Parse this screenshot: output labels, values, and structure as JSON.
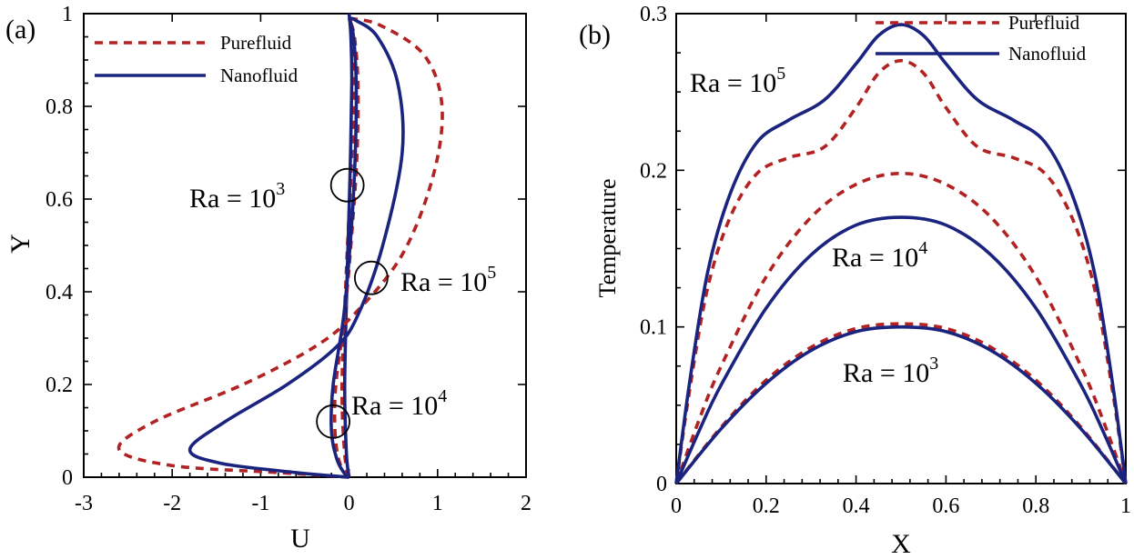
{
  "chart_data": [
    {
      "type": "line",
      "panel_label": "(a)",
      "xlabel": "U",
      "ylabel": "Y",
      "xlim": [
        -3,
        2
      ],
      "ylim": [
        0,
        1
      ],
      "x_ticks": [
        "-3",
        "-2",
        "-1",
        "0",
        "1",
        "2"
      ],
      "y_ticks": [
        "0",
        "0.2",
        "0.4",
        "0.6",
        "0.8",
        "1"
      ],
      "legend": {
        "position": "top-left",
        "entries": [
          "Purefluid",
          "Nanofluid"
        ]
      },
      "annotations": [
        {
          "base": "Ra = 10",
          "exp": "3",
          "marker_at": [
            -0.02,
            0.63
          ]
        },
        {
          "base": "Ra = 10",
          "exp": "5",
          "marker_at": [
            0.25,
            0.43
          ]
        },
        {
          "base": "Ra = 10",
          "exp": "4",
          "marker_at": [
            -0.18,
            0.12
          ]
        }
      ],
      "series": [
        {
          "name": "Purefluid",
          "group": "Ra=10^3",
          "points": [
            [
              0,
              0
            ],
            [
              -0.05,
              0.05
            ],
            [
              -0.08,
              0.2
            ],
            [
              -0.03,
              0.45
            ],
            [
              0.02,
              0.65
            ],
            [
              0.06,
              0.85
            ],
            [
              0.04,
              0.95
            ],
            [
              0,
              1
            ]
          ]
        },
        {
          "name": "Nanofluid",
          "group": "Ra=10^3",
          "points": [
            [
              0,
              0
            ],
            [
              -0.03,
              0.05
            ],
            [
              -0.05,
              0.2
            ],
            [
              -0.02,
              0.45
            ],
            [
              0.01,
              0.65
            ],
            [
              0.03,
              0.85
            ],
            [
              0.02,
              0.95
            ],
            [
              0,
              1
            ]
          ]
        },
        {
          "name": "Purefluid",
          "group": "Ra=10^4",
          "points": [
            [
              0,
              0
            ],
            [
              -0.05,
              0.01
            ],
            [
              -0.12,
              0.04
            ],
            [
              -0.16,
              0.1
            ],
            [
              -0.15,
              0.2
            ],
            [
              -0.05,
              0.35
            ],
            [
              0.04,
              0.55
            ],
            [
              0.09,
              0.7
            ],
            [
              0.1,
              0.85
            ],
            [
              0.06,
              0.95
            ],
            [
              0,
              0.99
            ]
          ]
        },
        {
          "name": "Nanofluid",
          "group": "Ra=10^4",
          "points": [
            [
              0,
              0
            ],
            [
              -0.06,
              0.01
            ],
            [
              -0.14,
              0.04
            ],
            [
              -0.2,
              0.1
            ],
            [
              -0.18,
              0.2
            ],
            [
              -0.06,
              0.35
            ],
            [
              0.03,
              0.55
            ],
            [
              0.07,
              0.7
            ],
            [
              0.08,
              0.85
            ],
            [
              0.05,
              0.95
            ],
            [
              0,
              0.99
            ]
          ]
        },
        {
          "name": "Purefluid",
          "group": "Ra=10^5",
          "points": [
            [
              0,
              0
            ],
            [
              -0.8,
              0.01
            ],
            [
              -2.0,
              0.025
            ],
            [
              -2.6,
              0.06
            ],
            [
              -2.2,
              0.12
            ],
            [
              -1.2,
              0.2
            ],
            [
              -0.4,
              0.28
            ],
            [
              0.05,
              0.35
            ],
            [
              0.6,
              0.48
            ],
            [
              0.95,
              0.65
            ],
            [
              1.05,
              0.8
            ],
            [
              0.85,
              0.91
            ],
            [
              0.35,
              0.975
            ],
            [
              0,
              0.99
            ]
          ]
        },
        {
          "name": "Nanofluid",
          "group": "Ra=10^5",
          "points": [
            [
              0,
              0
            ],
            [
              -0.6,
              0.01
            ],
            [
              -1.45,
              0.03
            ],
            [
              -1.8,
              0.06
            ],
            [
              -1.4,
              0.12
            ],
            [
              -0.7,
              0.2
            ],
            [
              -0.15,
              0.28
            ],
            [
              0.1,
              0.35
            ],
            [
              0.38,
              0.5
            ],
            [
              0.6,
              0.7
            ],
            [
              0.55,
              0.85
            ],
            [
              0.32,
              0.95
            ],
            [
              0.08,
              0.985
            ],
            [
              0,
              0.99
            ]
          ]
        }
      ]
    },
    {
      "type": "line",
      "panel_label": "(b)",
      "xlabel": "X",
      "ylabel": "Temperature",
      "xlim": [
        0,
        1
      ],
      "ylim": [
        0,
        0.3
      ],
      "x_ticks": [
        "0",
        "0.2",
        "0.4",
        "0.6",
        "0.8",
        "1"
      ],
      "y_ticks": [
        "0",
        "0.1",
        "0.2",
        "0.3"
      ],
      "legend": {
        "position": "top-right",
        "entries": [
          "Purefluid",
          "Nanofluid"
        ]
      },
      "annotations": [
        {
          "base": "Ra = 10",
          "exp": "5"
        },
        {
          "base": "Ra = 10",
          "exp": "4"
        },
        {
          "base": "Ra = 10",
          "exp": "3"
        }
      ],
      "series": [
        {
          "name": "Purefluid",
          "group": "Ra=10^3",
          "points": [
            [
              0,
              0
            ],
            [
              0.1,
              0.036
            ],
            [
              0.2,
              0.066
            ],
            [
              0.3,
              0.087
            ],
            [
              0.4,
              0.099
            ],
            [
              0.5,
              0.102
            ],
            [
              0.6,
              0.099
            ],
            [
              0.7,
              0.087
            ],
            [
              0.8,
              0.066
            ],
            [
              0.9,
              0.036
            ],
            [
              1,
              0
            ]
          ]
        },
        {
          "name": "Nanofluid",
          "group": "Ra=10^3",
          "points": [
            [
              0,
              0
            ],
            [
              0.1,
              0.035
            ],
            [
              0.2,
              0.064
            ],
            [
              0.3,
              0.085
            ],
            [
              0.4,
              0.097
            ],
            [
              0.5,
              0.1
            ],
            [
              0.6,
              0.097
            ],
            [
              0.7,
              0.085
            ],
            [
              0.8,
              0.064
            ],
            [
              0.9,
              0.035
            ],
            [
              1,
              0
            ]
          ]
        },
        {
          "name": "Purefluid",
          "group": "Ra=10^4",
          "points": [
            [
              0,
              0
            ],
            [
              0.05,
              0.04
            ],
            [
              0.1,
              0.075
            ],
            [
              0.2,
              0.132
            ],
            [
              0.3,
              0.17
            ],
            [
              0.4,
              0.191
            ],
            [
              0.5,
              0.198
            ],
            [
              0.6,
              0.191
            ],
            [
              0.7,
              0.17
            ],
            [
              0.8,
              0.132
            ],
            [
              0.9,
              0.075
            ],
            [
              0.95,
              0.04
            ],
            [
              1,
              0
            ]
          ]
        },
        {
          "name": "Nanofluid",
          "group": "Ra=10^4",
          "points": [
            [
              0,
              0
            ],
            [
              0.05,
              0.033
            ],
            [
              0.1,
              0.063
            ],
            [
              0.2,
              0.112
            ],
            [
              0.3,
              0.146
            ],
            [
              0.4,
              0.165
            ],
            [
              0.5,
              0.17
            ],
            [
              0.6,
              0.165
            ],
            [
              0.7,
              0.146
            ],
            [
              0.8,
              0.112
            ],
            [
              0.9,
              0.063
            ],
            [
              0.95,
              0.033
            ],
            [
              1,
              0
            ]
          ]
        },
        {
          "name": "Purefluid",
          "group": "Ra=10^5",
          "points": [
            [
              0,
              0
            ],
            [
              0.03,
              0.06
            ],
            [
              0.07,
              0.125
            ],
            [
              0.12,
              0.17
            ],
            [
              0.18,
              0.198
            ],
            [
              0.25,
              0.208
            ],
            [
              0.33,
              0.215
            ],
            [
              0.4,
              0.24
            ],
            [
              0.45,
              0.262
            ],
            [
              0.5,
              0.27
            ],
            [
              0.55,
              0.262
            ],
            [
              0.6,
              0.24
            ],
            [
              0.67,
              0.215
            ],
            [
              0.75,
              0.208
            ],
            [
              0.82,
              0.198
            ],
            [
              0.88,
              0.17
            ],
            [
              0.93,
              0.125
            ],
            [
              0.97,
              0.06
            ],
            [
              1,
              0
            ]
          ]
        },
        {
          "name": "Nanofluid",
          "group": "Ra=10^5",
          "points": [
            [
              0,
              0
            ],
            [
              0.03,
              0.065
            ],
            [
              0.07,
              0.135
            ],
            [
              0.12,
              0.185
            ],
            [
              0.18,
              0.218
            ],
            [
              0.25,
              0.232
            ],
            [
              0.33,
              0.245
            ],
            [
              0.4,
              0.268
            ],
            [
              0.45,
              0.286
            ],
            [
              0.5,
              0.293
            ],
            [
              0.55,
              0.286
            ],
            [
              0.6,
              0.268
            ],
            [
              0.67,
              0.245
            ],
            [
              0.75,
              0.232
            ],
            [
              0.82,
              0.218
            ],
            [
              0.88,
              0.185
            ],
            [
              0.93,
              0.135
            ],
            [
              0.97,
              0.065
            ],
            [
              1,
              0
            ]
          ]
        }
      ]
    }
  ]
}
